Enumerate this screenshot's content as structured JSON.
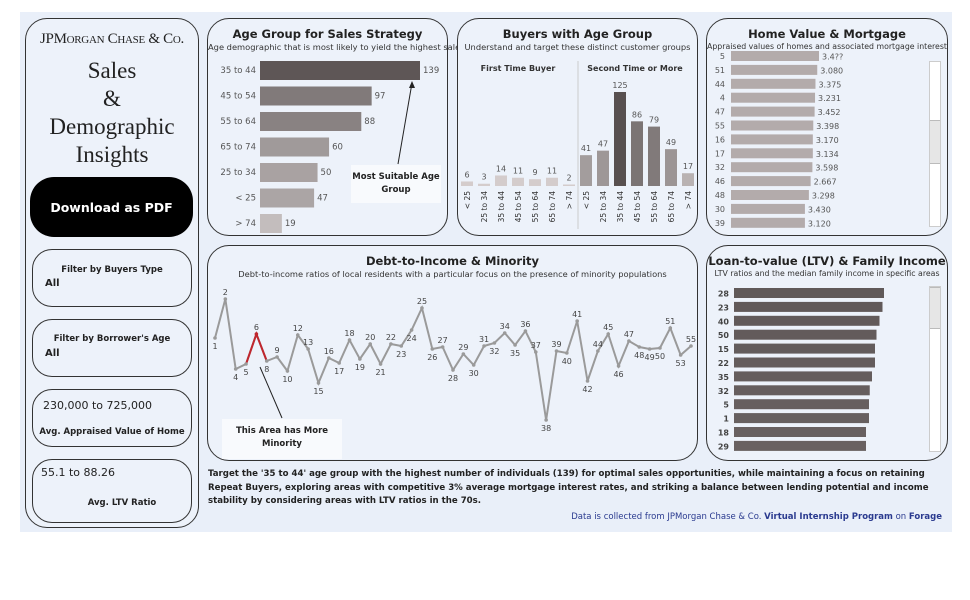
{
  "sidebar": {
    "logo": "JPMorgan Chase & Co.",
    "title_lines": [
      "Sales",
      "&",
      "Demographic",
      "Insights"
    ],
    "download_label": "Download as PDF",
    "filters": [
      {
        "label": "Filter by Buyers Type",
        "value": "All"
      },
      {
        "label": "Filter by Borrower's Age",
        "value": "All"
      }
    ],
    "kpis": [
      {
        "value": "230,000 to 725,000",
        "label": "Avg. Appraised Value of Home"
      },
      {
        "value": "55.1 to 88.26",
        "label": "Avg. LTV Ratio"
      }
    ]
  },
  "colors": {
    "background": "#e9eff9",
    "bar_dark": "#5a5252",
    "bar_mid": "#8a8080",
    "bar_light": "#c8c2c2",
    "line": "#9a9a9a",
    "highlight": "#c0262d",
    "link": "#2a3a8f"
  },
  "age_chart": {
    "title": "Age Group for Sales Strategy",
    "subtitle": "Age demographic that is most likely to yield the highest sales",
    "annotation": "Most Suitable Age Group",
    "chart_data": {
      "type": "bar",
      "orientation": "horizontal",
      "categories": [
        "35 to 44",
        "45 to 54",
        "55 to 64",
        "65 to 74",
        "25 to 34",
        "< 25",
        "> 74"
      ],
      "values": [
        139,
        97,
        88,
        60,
        50,
        47,
        19
      ]
    }
  },
  "buyers_chart": {
    "title": "Buyers with Age Group",
    "subtitle": "Understand and target these distinct customer groups",
    "chart_data": {
      "type": "bar",
      "categories": [
        "< 25",
        "25 to 34",
        "35 to 44",
        "45 to 54",
        "55 to 64",
        "65 to 74",
        "> 74"
      ],
      "series": [
        {
          "name": "First Time Buyer",
          "values": [
            6,
            3,
            14,
            11,
            9,
            11,
            2
          ]
        },
        {
          "name": "Second Time or More",
          "values": [
            41,
            47,
            125,
            86,
            79,
            49,
            17
          ]
        }
      ]
    }
  },
  "home_chart": {
    "title": "Home Value & Mortgage",
    "subtitle": "Appraised values of homes and associated mortgage interests",
    "chart_data": {
      "type": "bar",
      "orientation": "horizontal",
      "scrollable": true,
      "categories": [
        "5",
        "51",
        "44",
        "4",
        "47",
        "55",
        "16",
        "17",
        "32",
        "46",
        "48",
        "30",
        "39"
      ],
      "labels": [
        "3.4??",
        "3.080",
        "3.375",
        "3.231",
        "3.452",
        "3.398",
        "3.170",
        "3.134",
        "3.598",
        "2.667",
        "3.298",
        "3.430",
        "3.120"
      ],
      "relative_values": [
        1.0,
        0.98,
        0.96,
        0.955,
        0.95,
        0.935,
        0.93,
        0.93,
        0.925,
        0.905,
        0.885,
        0.84,
        0.84
      ]
    }
  },
  "debt_chart": {
    "title": "Debt-to-Income & Minority",
    "subtitle": "Debt-to-income ratios of local residents with a particular focus on the presence of minority populations",
    "annotation": "This Area has More Minority",
    "chart_data": {
      "type": "line",
      "y_axis": "none",
      "highlight": "6",
      "labels": [
        "1",
        "2",
        "4",
        "5",
        "6",
        "8",
        "9",
        "10",
        "12",
        "13",
        "15",
        "16",
        "17",
        "18",
        "19",
        "20",
        "21",
        "22",
        "23",
        "24",
        "25",
        "26",
        "27",
        "28",
        "29",
        "30",
        "31",
        "32",
        "34",
        "35",
        "36",
        "37",
        "38",
        "39",
        "40",
        "41",
        "42",
        "44",
        "45",
        "46",
        "47",
        "48",
        "49",
        "50",
        "51",
        "53",
        "55"
      ],
      "values": [
        88,
        127,
        57,
        62,
        92,
        65,
        69,
        55,
        91,
        77,
        43,
        68,
        63,
        86,
        67,
        82,
        62,
        82,
        80,
        96,
        118,
        77,
        79,
        56,
        72,
        61,
        80,
        83,
        93,
        81,
        95,
        74,
        6,
        75,
        73,
        105,
        45,
        75,
        92,
        60,
        85,
        79,
        77,
        78,
        98,
        71,
        80
      ]
    }
  },
  "ltv_chart": {
    "title": "Loan-to-value (LTV) & Family Income",
    "subtitle": "LTV ratios and the median family income in specific areas",
    "chart_data": {
      "type": "bar",
      "orientation": "horizontal",
      "scrollable": true,
      "categories": [
        "28",
        "23",
        "40",
        "50",
        "15",
        "22",
        "35",
        "32",
        "5",
        "1",
        "18",
        "29"
      ],
      "relative_values": [
        1.0,
        0.99,
        0.97,
        0.95,
        0.94,
        0.94,
        0.92,
        0.905,
        0.9,
        0.9,
        0.88,
        0.88
      ]
    }
  },
  "footer": {
    "summary": "Target the '35 to 44' age group with the highest number of individuals (139) for optimal sales opportunities, while maintaining a focus on retaining Repeat Buyers, exploring areas with competitive 3% average mortgage interest rates, and striking a balance between lending potential and income stability by considering areas with LTV ratios in the 70s.",
    "source_prefix": "Data is collected from JPMorgan Chase & Co.",
    "source_link": "Virtual Internship Program",
    "source_mid": "on",
    "source_org": "Forage"
  }
}
